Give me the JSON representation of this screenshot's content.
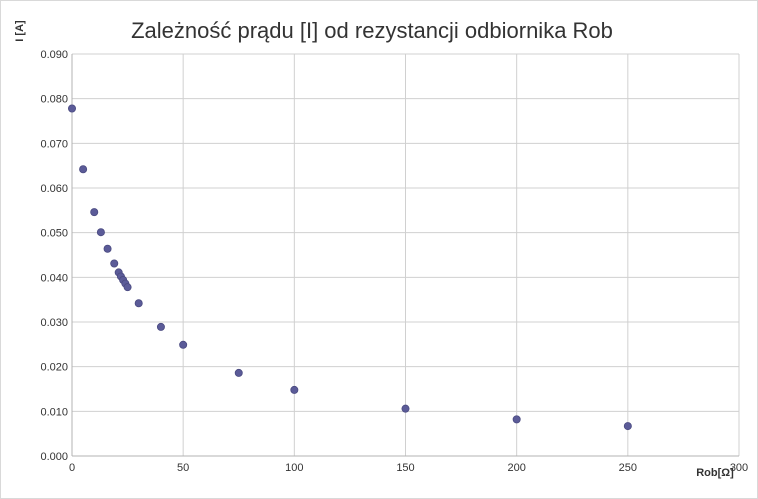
{
  "chart_data": {
    "type": "scatter",
    "title": "Zależność prądu [I] od rezystancji odbiornika Rob",
    "xlabel": "Rob[Ω]",
    "ylabel": "I [A]",
    "xlim": [
      0,
      300
    ],
    "ylim": [
      0,
      0.09
    ],
    "x_ticks": [
      0,
      50,
      100,
      150,
      200,
      250,
      300
    ],
    "y_ticks": [
      0,
      0.01,
      0.02,
      0.03,
      0.04,
      0.05,
      0.06,
      0.07,
      0.08,
      0.09
    ],
    "y_tick_labels": [
      "0.000",
      "0.010",
      "0.020",
      "0.030",
      "0.040",
      "0.050",
      "0.060",
      "0.070",
      "0.080",
      "0.090"
    ],
    "grid": true,
    "legend": false,
    "marker_color": "#5b5b98",
    "points": [
      {
        "x": 0,
        "y": 0.0778
      },
      {
        "x": 5,
        "y": 0.0642
      },
      {
        "x": 10,
        "y": 0.0546
      },
      {
        "x": 13,
        "y": 0.0501
      },
      {
        "x": 16,
        "y": 0.0464
      },
      {
        "x": 19,
        "y": 0.0431
      },
      {
        "x": 21,
        "y": 0.0411
      },
      {
        "x": 22,
        "y": 0.0402
      },
      {
        "x": 23,
        "y": 0.0394
      },
      {
        "x": 24,
        "y": 0.0386
      },
      {
        "x": 25,
        "y": 0.0378
      },
      {
        "x": 30,
        "y": 0.0342
      },
      {
        "x": 40,
        "y": 0.0289
      },
      {
        "x": 50,
        "y": 0.0249
      },
      {
        "x": 75,
        "y": 0.0186
      },
      {
        "x": 100,
        "y": 0.0148
      },
      {
        "x": 150,
        "y": 0.0106
      },
      {
        "x": 200,
        "y": 0.0082
      },
      {
        "x": 250,
        "y": 0.0067
      }
    ]
  }
}
